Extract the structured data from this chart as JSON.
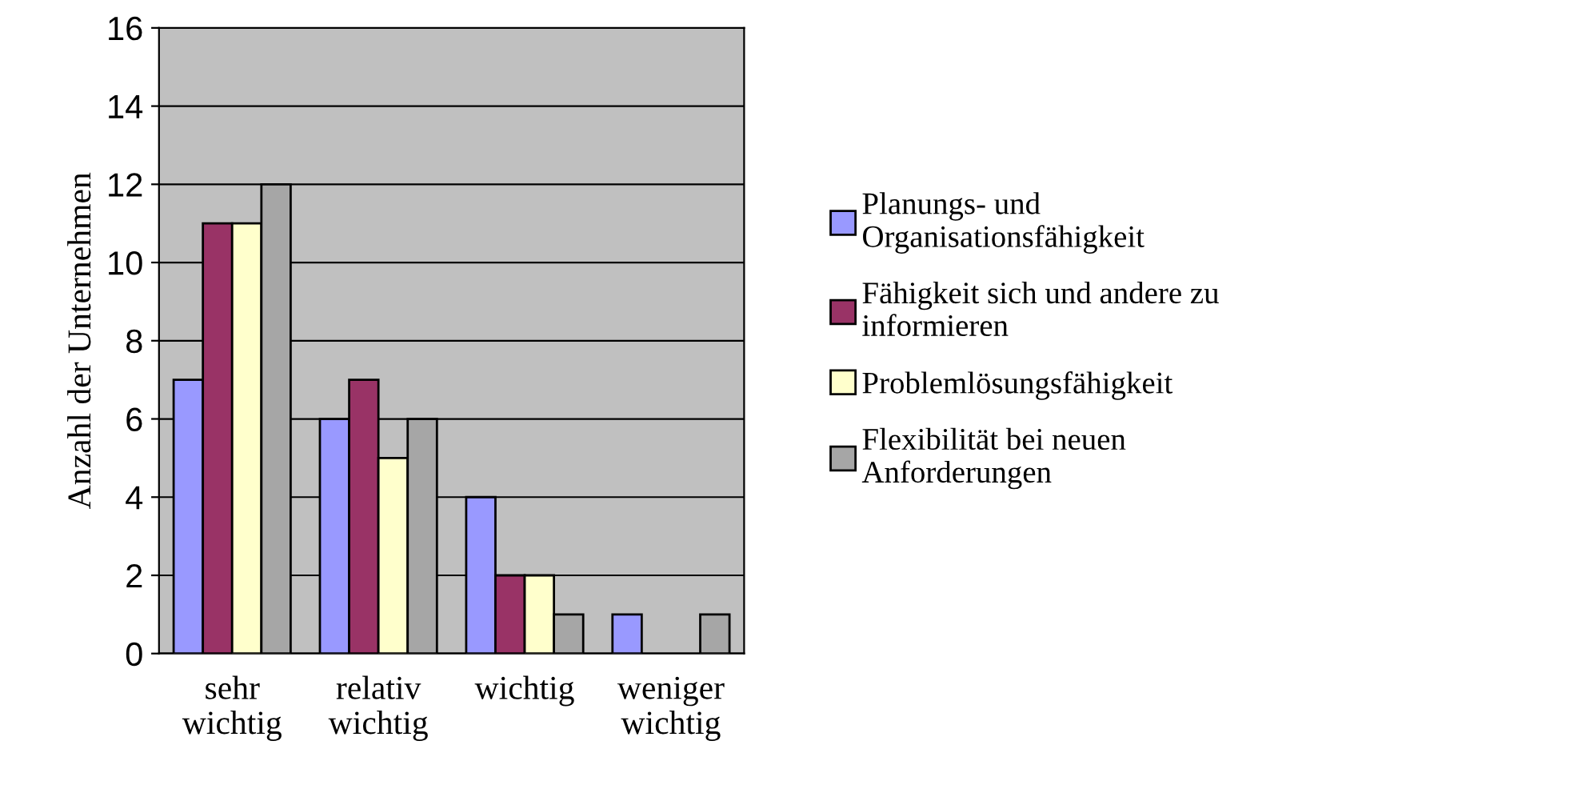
{
  "chart_data": {
    "type": "bar",
    "ylabel": "Anzahl der Unternehmen",
    "categories": [
      "sehr\nwichtig",
      "relativ\nwichtig",
      "wichtig",
      "weniger\nwichtig"
    ],
    "series": [
      {
        "name": "Planungs- und\nOrganisationsfähigkeit",
        "color": "#9999ff",
        "values": [
          7,
          6,
          4,
          1
        ]
      },
      {
        "name": "Fähigkeit sich und andere zu\ninformieren",
        "color": "#993366",
        "values": [
          11,
          7,
          2,
          0
        ]
      },
      {
        "name": "Problemlösungsfähigkeit",
        "color": "#ffffcc",
        "values": [
          11,
          5,
          2,
          0
        ]
      },
      {
        "name": "Flexibilität bei neuen\nAnforderungen",
        "color": "#a6a6a6",
        "values": [
          12,
          6,
          1,
          1
        ]
      }
    ],
    "ylim": [
      0,
      16
    ],
    "yticks": [
      0,
      2,
      4,
      6,
      8,
      10,
      12,
      14,
      16
    ],
    "grid": "y",
    "legend": "right"
  }
}
